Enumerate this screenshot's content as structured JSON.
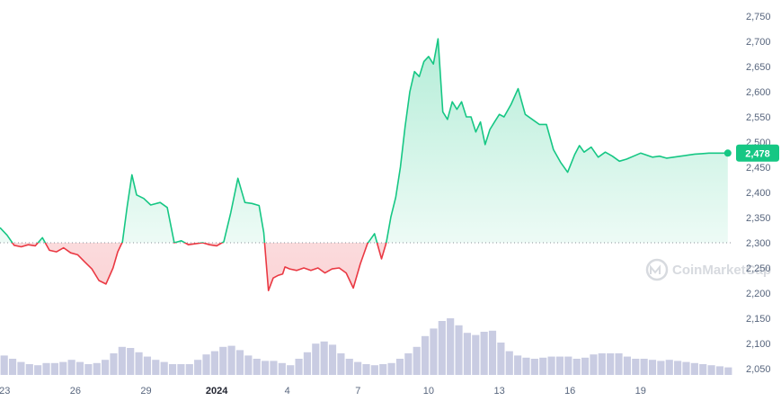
{
  "watermark": "CoinMarketCap",
  "colors": {
    "up": "#16c784",
    "down": "#ea3943",
    "volume": "#c9cce2",
    "grid_text": "#58667e",
    "baseline": "#8a8f99"
  },
  "chart_data": {
    "type": "line",
    "baseline_value": 2300,
    "ylim": [
      2030,
      2765
    ],
    "ytick_labels": [
      "2,750",
      "2,700",
      "2,650",
      "2,600",
      "2,550",
      "2,500",
      "2,450",
      "2,400",
      "2,350",
      "2,300",
      "2,250",
      "2,200",
      "2,150",
      "2,100",
      "2,050"
    ],
    "ytick_values": [
      2750,
      2700,
      2650,
      2600,
      2550,
      2500,
      2450,
      2400,
      2350,
      2300,
      2250,
      2200,
      2150,
      2100,
      2050
    ],
    "xlim": [
      0,
      31.1
    ],
    "xtick_labels": [
      "23",
      "26",
      "29",
      "2024",
      "4",
      "7",
      "10",
      "13",
      "16",
      "19"
    ],
    "xtick_values": [
      0.2,
      3.2,
      6.2,
      9.2,
      12.2,
      15.2,
      18.2,
      21.2,
      24.2,
      27.2
    ],
    "current_price_label": "2,478",
    "current_price": 2478,
    "series": [
      {
        "x": [
          0,
          0.3,
          0.6,
          0.9,
          1.2,
          1.5,
          1.8,
          2.1,
          2.4,
          2.7,
          3.0,
          3.3,
          3.6,
          3.9,
          4.2,
          4.5,
          4.8,
          5.0,
          5.2,
          5.4,
          5.6,
          5.8,
          6.1,
          6.4,
          6.8,
          7.1,
          7.4,
          7.7,
          8.0,
          8.3,
          8.6,
          8.9,
          9.2,
          9.5,
          9.8,
          10.1,
          10.4,
          10.7,
          11.0,
          11.2,
          11.4,
          11.6,
          11.8,
          12.0,
          12.1,
          12.3,
          12.6,
          12.9,
          13.2,
          13.5,
          13.8,
          14.1,
          14.4,
          14.7,
          15.0,
          15.3,
          15.6,
          15.9,
          16.2,
          16.4,
          16.6,
          16.8,
          17.0,
          17.2,
          17.4,
          17.6,
          17.8,
          18.0,
          18.2,
          18.4,
          18.6,
          18.8,
          19.0,
          19.2,
          19.4,
          19.6,
          19.8,
          20.0,
          20.2,
          20.4,
          20.6,
          20.8,
          21.0,
          21.2,
          21.4,
          21.7,
          22.0,
          22.3,
          22.6,
          22.9,
          23.2,
          23.5,
          23.8,
          24.1,
          24.4,
          24.6,
          24.8,
          25.1,
          25.4,
          25.7,
          26.0,
          26.3,
          26.6,
          26.9,
          27.2,
          27.4,
          27.7,
          28.0,
          28.3,
          28.6,
          28.9,
          29.2,
          29.5,
          29.8,
          30.1,
          30.4,
          30.7,
          30.9
        ],
        "y": [
          2330,
          2315,
          2295,
          2292,
          2296,
          2294,
          2310,
          2285,
          2282,
          2290,
          2280,
          2276,
          2262,
          2248,
          2225,
          2218,
          2250,
          2282,
          2302,
          2372,
          2435,
          2395,
          2388,
          2375,
          2380,
          2370,
          2300,
          2304,
          2296,
          2298,
          2300,
          2296,
          2294,
          2302,
          2360,
          2428,
          2380,
          2378,
          2374,
          2320,
          2205,
          2230,
          2235,
          2238,
          2252,
          2248,
          2245,
          2250,
          2245,
          2250,
          2240,
          2248,
          2250,
          2240,
          2210,
          2258,
          2298,
          2318,
          2268,
          2300,
          2352,
          2390,
          2450,
          2530,
          2600,
          2640,
          2630,
          2660,
          2670,
          2655,
          2705,
          2560,
          2545,
          2580,
          2565,
          2580,
          2550,
          2550,
          2520,
          2540,
          2495,
          2525,
          2540,
          2555,
          2550,
          2575,
          2606,
          2555,
          2545,
          2535,
          2535,
          2485,
          2460,
          2440,
          2475,
          2493,
          2480,
          2490,
          2470,
          2480,
          2472,
          2462,
          2466,
          2472,
          2478,
          2475,
          2470,
          2472,
          2468,
          2470,
          2472,
          2474,
          2476,
          2477,
          2478,
          2478,
          2478,
          2478
        ]
      }
    ],
    "volume_values": [
      0.36,
      0.3,
      0.24,
      0.2,
      0.18,
      0.22,
      0.22,
      0.24,
      0.28,
      0.24,
      0.2,
      0.22,
      0.28,
      0.4,
      0.52,
      0.5,
      0.42,
      0.34,
      0.28,
      0.24,
      0.2,
      0.2,
      0.2,
      0.28,
      0.38,
      0.44,
      0.52,
      0.54,
      0.46,
      0.36,
      0.3,
      0.26,
      0.26,
      0.22,
      0.18,
      0.3,
      0.42,
      0.58,
      0.62,
      0.56,
      0.4,
      0.3,
      0.24,
      0.2,
      0.18,
      0.2,
      0.22,
      0.3,
      0.4,
      0.52,
      0.72,
      0.86,
      1.0,
      1.05,
      0.92,
      0.78,
      0.74,
      0.8,
      0.82,
      0.6,
      0.44,
      0.36,
      0.32,
      0.3,
      0.32,
      0.34,
      0.34,
      0.34,
      0.3,
      0.32,
      0.38,
      0.4,
      0.4,
      0.4,
      0.34,
      0.3,
      0.3,
      0.28,
      0.26,
      0.28,
      0.26,
      0.24,
      0.22,
      0.2,
      0.18,
      0.16,
      0.14
    ]
  }
}
